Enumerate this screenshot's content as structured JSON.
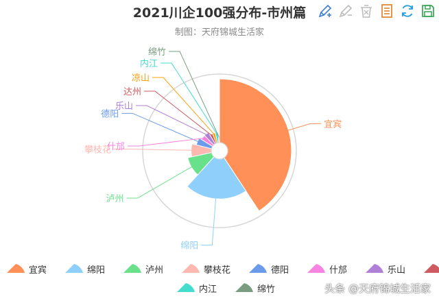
{
  "title": "2021川企100强分布-市州篇",
  "subtitle": "制图：天府锦城生活家",
  "watermark": "头条 @天府锦城生活家",
  "toolbox": [
    {
      "name": "mark-icon",
      "color": "#3a7bd5"
    },
    {
      "name": "mark-undo-icon",
      "color": "#bbbbbb"
    },
    {
      "name": "mark-clear-icon",
      "color": "#bbbbbb"
    },
    {
      "name": "data-view-icon",
      "color": "#e07b1a"
    },
    {
      "name": "restore-icon",
      "color": "#1f9de0"
    },
    {
      "name": "save-image-icon",
      "color": "#27a043"
    }
  ],
  "chart_data": {
    "type": "pie",
    "subtype": "rose-radius",
    "title": "2021川企100强分布-市州篇",
    "legend_position": "bottom",
    "categories": [
      "宜宾",
      "绵阳",
      "泸州",
      "攀枝花",
      "德阳",
      "什邡",
      "乐山",
      "达州",
      "凉山",
      "内江",
      "绵竹"
    ],
    "values": [
      33,
      17,
      8,
      6,
      4,
      3,
      3,
      2,
      2,
      2,
      1
    ],
    "colors": [
      "#ff9158",
      "#8ecffc",
      "#69e08a",
      "#ffb8b0",
      "#6b9bea",
      "#f883e0",
      "#b07fd6",
      "#cf5a62",
      "#fba20d",
      "#44dccc",
      "#7a9d80"
    ]
  }
}
